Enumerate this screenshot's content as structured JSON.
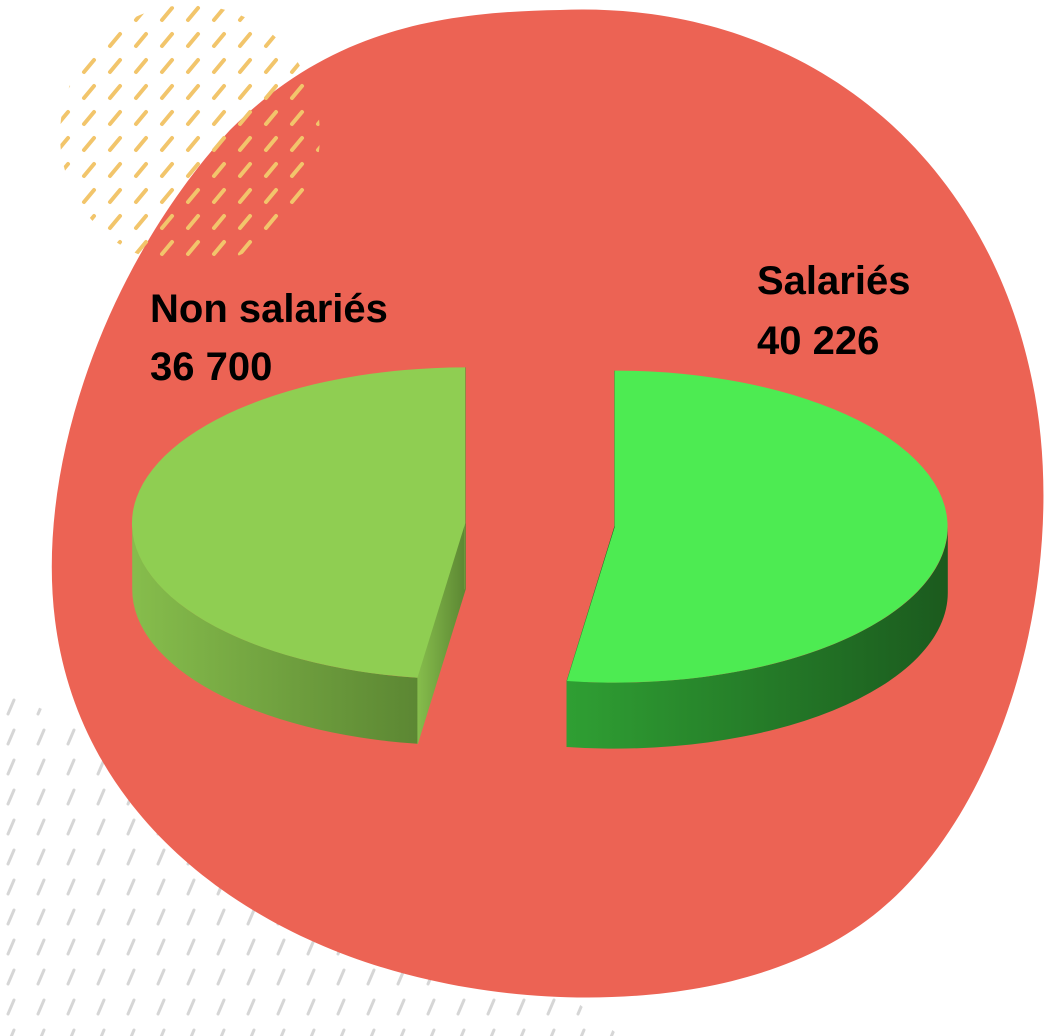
{
  "chart_data": {
    "type": "pie3d",
    "categories": [
      "Salariés",
      "Non salariés"
    ],
    "values": [
      40226,
      36700
    ],
    "value_labels": [
      "40 226",
      "36 700"
    ],
    "colors": [
      "#4deb52",
      "#8fce52"
    ]
  }
}
